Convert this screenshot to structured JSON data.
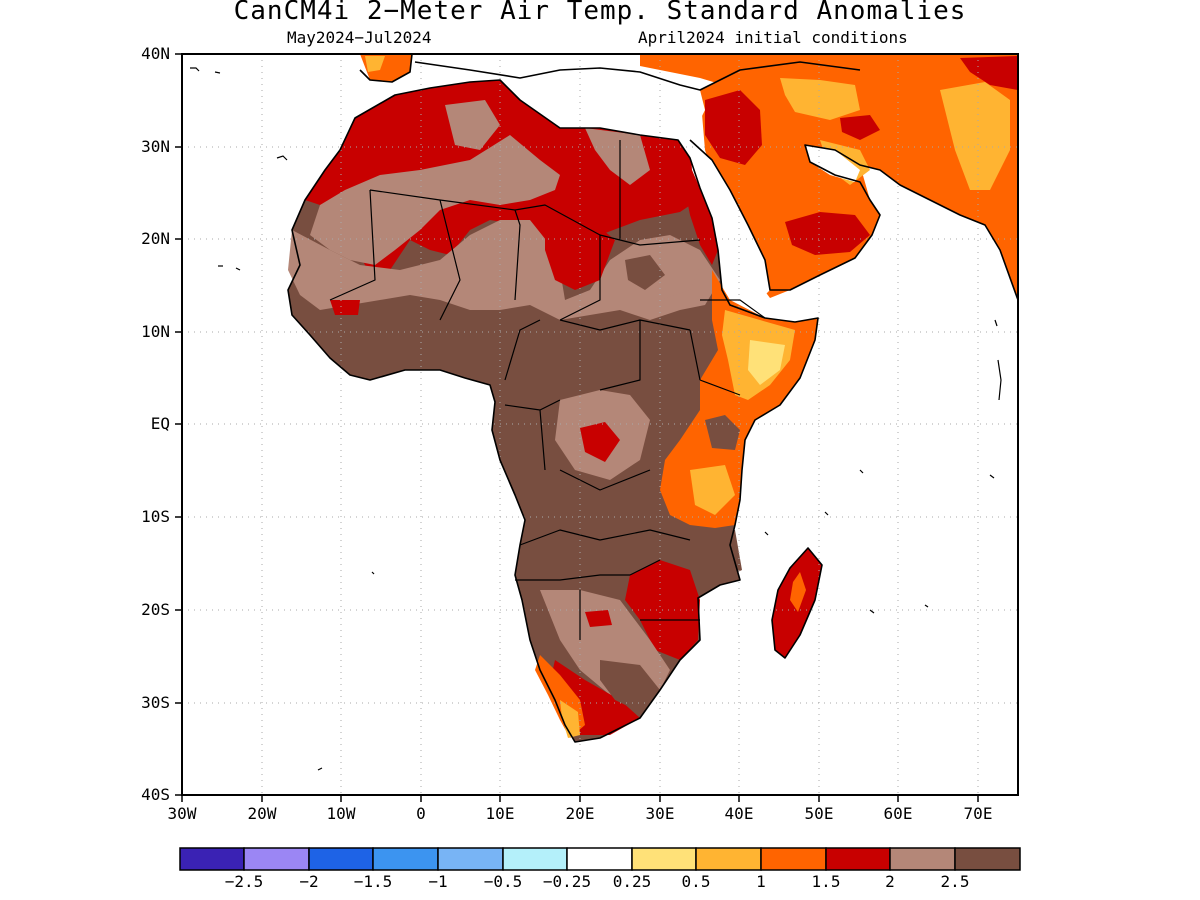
{
  "title": "CanCM4i 2−Meter Air Temp. Standard Anomalies",
  "subtitle_left": "May2024−Jul2024",
  "subtitle_right": "April2024 initial conditions",
  "map": {
    "lat_labels": [
      "40N",
      "30N",
      "20N",
      "10N",
      "EQ",
      "10S",
      "20S",
      "30S",
      "40S"
    ],
    "lon_labels": [
      "30W",
      "20W",
      "10W",
      "0",
      "10E",
      "20E",
      "30E",
      "40E",
      "50E",
      "60E",
      "70E"
    ]
  },
  "legend": {
    "colors": [
      "#3a22b4",
      "#9b86f4",
      "#1e63e6",
      "#3c94f0",
      "#78b4f5",
      "#b4f0fa",
      "#ffffff",
      "#ffe178",
      "#ffb432",
      "#ff6400",
      "#c80000",
      "#b48778",
      "#784e40"
    ],
    "labels": [
      "−2.5",
      "−2",
      "−1.5",
      "−1",
      "−0.5",
      "−0.25",
      "0.25",
      "0.5",
      "1",
      "1.5",
      "2",
      "2.5"
    ]
  },
  "colors": {
    "c_05": "#ffe178",
    "c_1": "#ffb432",
    "c_15": "#ff6400",
    "c_2": "#c80000",
    "c_25": "#b48778",
    "c_3": "#784e40"
  }
}
